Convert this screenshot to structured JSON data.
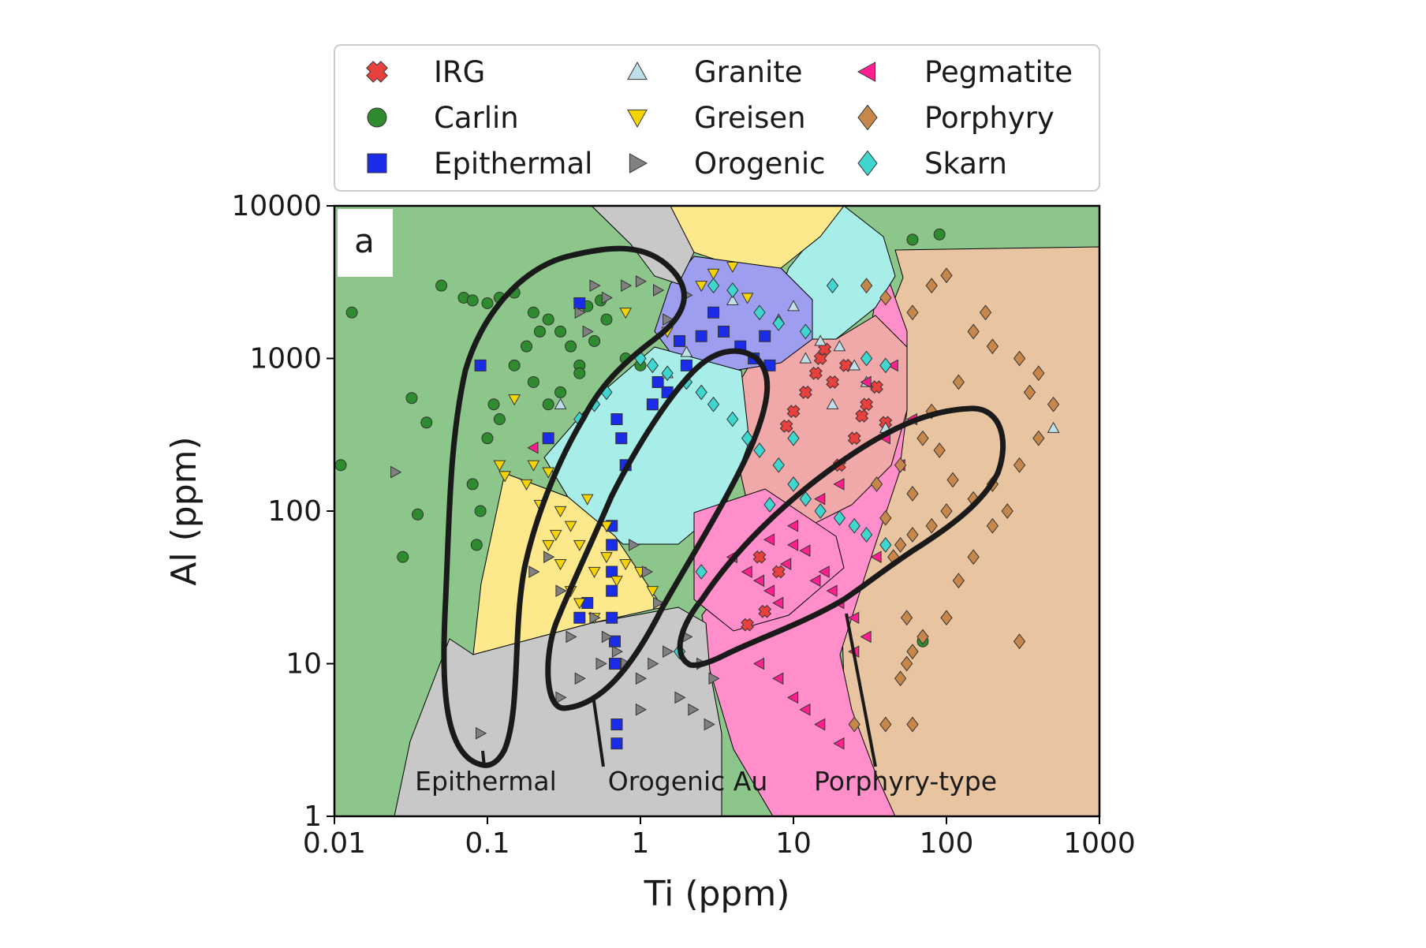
{
  "chart_data": {
    "type": "scatter",
    "panel_label": "a",
    "xlabel": "Ti (ppm)",
    "ylabel": "Al (ppm)",
    "x_scale": "log",
    "y_scale": "log",
    "xlim": [
      0.01,
      1000
    ],
    "ylim": [
      1,
      10000
    ],
    "x_ticks": [
      {
        "value": 0.01,
        "label": "0.01"
      },
      {
        "value": 0.1,
        "label": "0.1"
      },
      {
        "value": 1,
        "label": "1"
      },
      {
        "value": 10,
        "label": "10"
      },
      {
        "value": 100,
        "label": "100"
      },
      {
        "value": 1000,
        "label": "1000"
      }
    ],
    "y_ticks": [
      {
        "value": 1,
        "label": "1"
      },
      {
        "value": 10,
        "label": "10"
      },
      {
        "value": 100,
        "label": "100"
      },
      {
        "value": 1000,
        "label": "1000"
      },
      {
        "value": 10000,
        "label": "10000"
      }
    ],
    "grid": false,
    "legend_position": "top, above plot (3 columns)",
    "series": [
      {
        "name": "IRG",
        "marker": "x",
        "color": "#e8403c",
        "points": [
          [
            15,
            1000
          ],
          [
            22,
            900
          ],
          [
            18,
            700
          ],
          [
            30,
            500
          ],
          [
            12,
            600
          ],
          [
            25,
            300
          ],
          [
            6,
            50
          ],
          [
            8,
            40
          ],
          [
            20,
            200
          ],
          [
            14,
            800
          ],
          [
            35,
            650
          ],
          [
            10,
            450
          ],
          [
            5,
            18
          ],
          [
            6.5,
            22
          ],
          [
            9,
            360
          ],
          [
            16,
            1150
          ],
          [
            28,
            420
          ],
          [
            40,
            380
          ]
        ]
      },
      {
        "name": "Carlin",
        "marker": "circle",
        "color": "#2e8b2e",
        "points": [
          [
            0.011,
            200
          ],
          [
            0.013,
            2000
          ],
          [
            0.028,
            50
          ],
          [
            0.032,
            550
          ],
          [
            0.035,
            95
          ],
          [
            0.04,
            380
          ],
          [
            0.05,
            3000
          ],
          [
            0.07,
            2500
          ],
          [
            0.08,
            2400
          ],
          [
            0.1,
            2300
          ],
          [
            0.12,
            2500
          ],
          [
            0.15,
            2700
          ],
          [
            0.2,
            2000
          ],
          [
            0.25,
            1800
          ],
          [
            0.3,
            1500
          ],
          [
            0.35,
            1200
          ],
          [
            0.4,
            900
          ],
          [
            0.5,
            1300
          ],
          [
            0.6,
            1800
          ],
          [
            0.8,
            1000
          ],
          [
            1.0,
            900
          ],
          [
            0.15,
            900
          ],
          [
            0.2,
            700
          ],
          [
            0.25,
            500
          ],
          [
            0.3,
            600
          ],
          [
            0.4,
            800
          ],
          [
            0.1,
            300
          ],
          [
            0.12,
            400
          ],
          [
            0.08,
            150
          ],
          [
            0.09,
            100
          ],
          [
            0.085,
            60
          ],
          [
            0.11,
            500
          ],
          [
            0.18,
            1200
          ],
          [
            0.22,
            1500
          ],
          [
            0.45,
            2200
          ],
          [
            0.55,
            2400
          ],
          [
            60,
            6000
          ],
          [
            90,
            6500
          ],
          [
            70,
            14
          ]
        ]
      },
      {
        "name": "Epithermal",
        "marker": "square",
        "color": "#1a2ce8",
        "points": [
          [
            0.4,
            2300
          ],
          [
            0.09,
            900
          ],
          [
            1.8,
            1300
          ],
          [
            2.5,
            1400
          ],
          [
            3.5,
            1500
          ],
          [
            4.5,
            1200
          ],
          [
            5.5,
            1000
          ],
          [
            6.5,
            1400
          ],
          [
            2.0,
            900
          ],
          [
            1.5,
            600
          ],
          [
            0.7,
            400
          ],
          [
            0.75,
            300
          ],
          [
            0.8,
            200
          ],
          [
            0.25,
            300
          ],
          [
            0.65,
            80
          ],
          [
            0.65,
            60
          ],
          [
            0.65,
            40
          ],
          [
            0.65,
            30
          ],
          [
            0.65,
            20
          ],
          [
            0.68,
            14
          ],
          [
            0.68,
            10
          ],
          [
            0.7,
            4
          ],
          [
            0.7,
            3
          ],
          [
            0.45,
            25
          ],
          [
            1.2,
            500
          ],
          [
            3.0,
            2000
          ],
          [
            0.4,
            20
          ],
          [
            7,
            900
          ],
          [
            1.3,
            700
          ]
        ]
      },
      {
        "name": "Granite",
        "marker": "triangle-up",
        "color": "#bfe0e8",
        "points": [
          [
            4,
            2400
          ],
          [
            10,
            2200
          ],
          [
            15,
            1300
          ],
          [
            25,
            900
          ],
          [
            30,
            700
          ],
          [
            18,
            500
          ],
          [
            40,
            350
          ],
          [
            8,
            1800
          ],
          [
            12,
            1000
          ],
          [
            0.3,
            500
          ],
          [
            2.0,
            1100
          ],
          [
            500,
            350
          ],
          [
            20,
            1200
          ],
          [
            1.5,
            800
          ]
        ]
      },
      {
        "name": "Greisen",
        "marker": "triangle-down",
        "color": "#f5d400",
        "points": [
          [
            0.12,
            200
          ],
          [
            0.13,
            170
          ],
          [
            0.15,
            540
          ],
          [
            0.18,
            150
          ],
          [
            0.2,
            200
          ],
          [
            0.25,
            180
          ],
          [
            0.3,
            100
          ],
          [
            0.35,
            80
          ],
          [
            0.4,
            60
          ],
          [
            0.5,
            40
          ],
          [
            0.6,
            50
          ],
          [
            0.8,
            45
          ],
          [
            1.0,
            40
          ],
          [
            0.25,
            60
          ],
          [
            0.3,
            45
          ],
          [
            0.35,
            30
          ],
          [
            0.4,
            25
          ],
          [
            0.5,
            20
          ],
          [
            1.2,
            30
          ],
          [
            3,
            3600
          ],
          [
            4,
            4000
          ],
          [
            2.5,
            3000
          ],
          [
            5,
            2500
          ],
          [
            0.8,
            2000
          ],
          [
            1.5,
            1500
          ],
          [
            0.6,
            80
          ],
          [
            0.45,
            120
          ],
          [
            0.28,
            70
          ],
          [
            0.22,
            110
          ],
          [
            0.7,
            35
          ]
        ]
      },
      {
        "name": "Orogenic",
        "marker": "triangle-right",
        "color": "#808080",
        "points": [
          [
            0.025,
            180
          ],
          [
            0.09,
            3.5
          ],
          [
            0.3,
            6
          ],
          [
            0.2,
            40
          ],
          [
            0.25,
            50
          ],
          [
            0.3,
            30
          ],
          [
            0.5,
            20
          ],
          [
            0.6,
            15
          ],
          [
            0.7,
            12
          ],
          [
            0.8,
            10
          ],
          [
            1.0,
            8
          ],
          [
            1.2,
            10
          ],
          [
            1.5,
            12
          ],
          [
            2.0,
            15
          ],
          [
            2.5,
            10
          ],
          [
            3.0,
            8
          ],
          [
            1.8,
            6
          ],
          [
            2.2,
            5
          ],
          [
            2.8,
            4
          ],
          [
            1.0,
            5
          ],
          [
            0.8,
            3000
          ],
          [
            1.0,
            3200
          ],
          [
            1.3,
            2800
          ],
          [
            0.5,
            3000
          ],
          [
            0.6,
            2500
          ],
          [
            0.4,
            2000
          ],
          [
            0.45,
            1500
          ],
          [
            1.5,
            1800
          ],
          [
            2,
            2600
          ],
          [
            0.9,
            60
          ],
          [
            1.1,
            40
          ],
          [
            1.3,
            25
          ],
          [
            0.35,
            15
          ],
          [
            0.4,
            8
          ],
          [
            0.55,
            10
          ]
        ]
      },
      {
        "name": "Pegmatite",
        "marker": "triangle-left",
        "color": "#ff1f8e",
        "points": [
          [
            4,
            50
          ],
          [
            5,
            40
          ],
          [
            6,
            35
          ],
          [
            7,
            30
          ],
          [
            8,
            25
          ],
          [
            9,
            45
          ],
          [
            10,
            60
          ],
          [
            12,
            55
          ],
          [
            14,
            35
          ],
          [
            16,
            40
          ],
          [
            18,
            30
          ],
          [
            20,
            25
          ],
          [
            25,
            20
          ],
          [
            30,
            15
          ],
          [
            6,
            10
          ],
          [
            8,
            8
          ],
          [
            10,
            6
          ],
          [
            12,
            5
          ],
          [
            15,
            4
          ],
          [
            20,
            3
          ],
          [
            25,
            12
          ],
          [
            35,
            50
          ],
          [
            40,
            300
          ],
          [
            50,
            200
          ],
          [
            60,
            400
          ],
          [
            20,
            150
          ],
          [
            15,
            120
          ],
          [
            0.2,
            260
          ],
          [
            30,
            700
          ],
          [
            45,
            900
          ],
          [
            10,
            80
          ],
          [
            7,
            65
          ]
        ]
      },
      {
        "name": "Porphyry",
        "marker": "diamond",
        "color": "#c8874a",
        "points": [
          [
            30,
            3000
          ],
          [
            40,
            2500
          ],
          [
            80,
            3000
          ],
          [
            100,
            3500
          ],
          [
            60,
            2000
          ],
          [
            150,
            1500
          ],
          [
            200,
            1200
          ],
          [
            300,
            1000
          ],
          [
            400,
            800
          ],
          [
            500,
            500
          ],
          [
            400,
            300
          ],
          [
            300,
            200
          ],
          [
            200,
            150
          ],
          [
            150,
            120
          ],
          [
            100,
            100
          ],
          [
            80,
            80
          ],
          [
            60,
            70
          ],
          [
            50,
            60
          ],
          [
            45,
            50
          ],
          [
            55,
            20
          ],
          [
            70,
            15
          ],
          [
            60,
            12
          ],
          [
            55,
            10
          ],
          [
            50,
            8
          ],
          [
            40,
            4
          ],
          [
            60,
            4
          ],
          [
            100,
            20
          ],
          [
            120,
            35
          ],
          [
            150,
            50
          ],
          [
            200,
            80
          ],
          [
            250,
            100
          ],
          [
            90,
            250
          ],
          [
            70,
            300
          ],
          [
            50,
            200
          ],
          [
            35,
            150
          ],
          [
            25,
            4
          ],
          [
            300,
            14
          ],
          [
            350,
            600
          ],
          [
            180,
            2000
          ],
          [
            120,
            700
          ],
          [
            80,
            450
          ],
          [
            60,
            130
          ],
          [
            110,
            160
          ],
          [
            40,
            90
          ]
        ]
      },
      {
        "name": "Skarn",
        "marker": "diamond",
        "color": "#3ed6cf",
        "points": [
          [
            1.0,
            1000
          ],
          [
            1.2,
            900
          ],
          [
            1.5,
            800
          ],
          [
            2.0,
            700
          ],
          [
            2.5,
            600
          ],
          [
            3.0,
            500
          ],
          [
            4.0,
            400
          ],
          [
            5.0,
            300
          ],
          [
            6.0,
            250
          ],
          [
            8.0,
            200
          ],
          [
            10,
            150
          ],
          [
            12,
            120
          ],
          [
            15,
            100
          ],
          [
            20,
            90
          ],
          [
            25,
            80
          ],
          [
            30,
            70
          ],
          [
            40,
            60
          ],
          [
            0.6,
            600
          ],
          [
            0.5,
            500
          ],
          [
            0.4,
            400
          ],
          [
            3,
            3000
          ],
          [
            4,
            2800
          ],
          [
            6,
            2000
          ],
          [
            8,
            1700
          ],
          [
            12,
            1500
          ],
          [
            18,
            3000
          ],
          [
            30,
            1000
          ],
          [
            1.8,
            12
          ],
          [
            2.5,
            40
          ],
          [
            7,
            110
          ],
          [
            10,
            300
          ],
          [
            40,
            900
          ]
        ]
      }
    ],
    "regions": [
      {
        "name": "green-background",
        "color": "#8dc68a"
      },
      {
        "name": "orogenic-grey",
        "color": "#c8c8c8"
      },
      {
        "name": "greisen-yellow",
        "color": "#fde98c"
      },
      {
        "name": "epithermal-blue",
        "color": "#9e9ef0"
      },
      {
        "name": "skarn-cyan",
        "color": "#a7ede8"
      },
      {
        "name": "irg-red",
        "color": "#f0a8a8"
      },
      {
        "name": "pegmatite-pink",
        "color": "#ff8ecb"
      },
      {
        "name": "porphyry-tan",
        "color": "#e8c5a0"
      }
    ],
    "field_labels": [
      {
        "text": "Epithermal",
        "x": 0.22,
        "y": 1.8
      },
      {
        "text": "Orogenic Au",
        "x": 3.0,
        "y": 1.8
      },
      {
        "text": "Porphyry-type",
        "x": 55,
        "y": 1.8
      }
    ]
  }
}
